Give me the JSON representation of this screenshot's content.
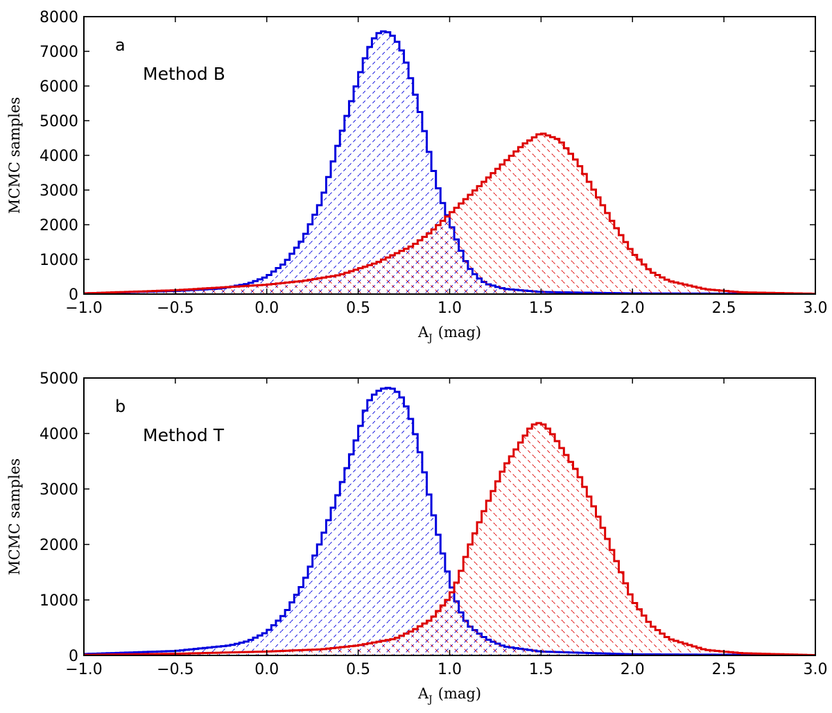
{
  "chart_data": [
    {
      "type": "histogram",
      "panel_label": "a",
      "annotation": "Method B",
      "xlabel": "A",
      "xlabel_sub": "J",
      "xlabel_unit": "(mag)",
      "ylabel": "MCMC samples",
      "xlim": [
        -1.0,
        3.0
      ],
      "ylim": [
        0,
        8000
      ],
      "xticks": [
        -1.0,
        -0.5,
        0.0,
        0.5,
        1.0,
        1.5,
        2.0,
        2.5,
        3.0
      ],
      "xtick_labels": [
        "−1.0",
        "−0.5",
        "0.0",
        "0.5",
        "1.0",
        "1.5",
        "2.0",
        "2.5",
        "3.0"
      ],
      "yticks": [
        0,
        1000,
        2000,
        3000,
        4000,
        5000,
        6000,
        7000,
        8000
      ],
      "ytick_labels": [
        "0",
        "1000",
        "2000",
        "3000",
        "4000",
        "5000",
        "6000",
        "7000",
        "8000"
      ],
      "bin_width": 0.025,
      "series": [
        {
          "name": "blue",
          "color": "#0000dd",
          "hatch": "forward",
          "points": [
            [
              -1.0,
              20
            ],
            [
              -0.5,
              90
            ],
            [
              -0.25,
              160
            ],
            [
              -0.1,
              300
            ],
            [
              0.0,
              500
            ],
            [
              0.1,
              900
            ],
            [
              0.2,
              1600
            ],
            [
              0.3,
              2700
            ],
            [
              0.4,
              4500
            ],
            [
              0.5,
              6200
            ],
            [
              0.55,
              7000
            ],
            [
              0.6,
              7500
            ],
            [
              0.65,
              7600
            ],
            [
              0.7,
              7400
            ],
            [
              0.75,
              6900
            ],
            [
              0.8,
              6000
            ],
            [
              0.85,
              5000
            ],
            [
              0.9,
              3800
            ],
            [
              0.95,
              2800
            ],
            [
              1.0,
              2100
            ],
            [
              1.05,
              1400
            ],
            [
              1.1,
              800
            ],
            [
              1.15,
              500
            ],
            [
              1.2,
              300
            ],
            [
              1.3,
              150
            ],
            [
              1.5,
              60
            ],
            [
              2.0,
              20
            ],
            [
              3.0,
              5
            ]
          ]
        },
        {
          "name": "red",
          "color": "#dd0000",
          "hatch": "back",
          "points": [
            [
              -1.0,
              20
            ],
            [
              -0.5,
              110
            ],
            [
              0.0,
              270
            ],
            [
              0.2,
              380
            ],
            [
              0.4,
              550
            ],
            [
              0.6,
              900
            ],
            [
              0.8,
              1400
            ],
            [
              0.9,
              1800
            ],
            [
              1.0,
              2300
            ],
            [
              1.1,
              2800
            ],
            [
              1.2,
              3300
            ],
            [
              1.3,
              3800
            ],
            [
              1.4,
              4300
            ],
            [
              1.5,
              4650
            ],
            [
              1.6,
              4450
            ],
            [
              1.7,
              3800
            ],
            [
              1.8,
              2900
            ],
            [
              1.9,
              2000
            ],
            [
              2.0,
              1200
            ],
            [
              2.1,
              650
            ],
            [
              2.2,
              380
            ],
            [
              2.4,
              140
            ],
            [
              2.6,
              50
            ],
            [
              3.0,
              10
            ]
          ]
        }
      ]
    },
    {
      "type": "histogram",
      "panel_label": "b",
      "annotation": "Method T",
      "xlabel": "A",
      "xlabel_sub": "J",
      "xlabel_unit": "(mag)",
      "ylabel": "MCMC samples",
      "xlim": [
        -1.0,
        3.0
      ],
      "ylim": [
        0,
        5000
      ],
      "xticks": [
        -1.0,
        -0.5,
        0.0,
        0.5,
        1.0,
        1.5,
        2.0,
        2.5,
        3.0
      ],
      "xtick_labels": [
        "−1.0",
        "−0.5",
        "0.0",
        "0.5",
        "1.0",
        "1.5",
        "2.0",
        "2.5",
        "3.0"
      ],
      "yticks": [
        0,
        1000,
        2000,
        3000,
        4000,
        5000
      ],
      "ytick_labels": [
        "0",
        "1000",
        "2000",
        "3000",
        "4000",
        "5000"
      ],
      "bin_width": 0.025,
      "series": [
        {
          "name": "blue",
          "color": "#0000dd",
          "hatch": "forward",
          "points": [
            [
              -1.0,
              25
            ],
            [
              -0.5,
              80
            ],
            [
              -0.2,
              180
            ],
            [
              -0.1,
              260
            ],
            [
              0.0,
              420
            ],
            [
              0.1,
              750
            ],
            [
              0.2,
              1300
            ],
            [
              0.3,
              2100
            ],
            [
              0.4,
              3000
            ],
            [
              0.5,
              4000
            ],
            [
              0.55,
              4550
            ],
            [
              0.6,
              4750
            ],
            [
              0.65,
              4830
            ],
            [
              0.7,
              4800
            ],
            [
              0.75,
              4600
            ],
            [
              0.8,
              4150
            ],
            [
              0.85,
              3500
            ],
            [
              0.9,
              2700
            ],
            [
              0.95,
              2000
            ],
            [
              1.0,
              1350
            ],
            [
              1.05,
              850
            ],
            [
              1.1,
              550
            ],
            [
              1.2,
              300
            ],
            [
              1.3,
              160
            ],
            [
              1.5,
              70
            ],
            [
              2.0,
              20
            ],
            [
              3.0,
              5
            ]
          ]
        },
        {
          "name": "red",
          "color": "#dd0000",
          "hatch": "back",
          "points": [
            [
              -1.0,
              10
            ],
            [
              -0.5,
              30
            ],
            [
              0.0,
              70
            ],
            [
              0.3,
              110
            ],
            [
              0.5,
              180
            ],
            [
              0.7,
              300
            ],
            [
              0.8,
              450
            ],
            [
              0.9,
              650
            ],
            [
              1.0,
              1050
            ],
            [
              1.05,
              1400
            ],
            [
              1.1,
              1900
            ],
            [
              1.2,
              2700
            ],
            [
              1.3,
              3400
            ],
            [
              1.4,
              3900
            ],
            [
              1.45,
              4150
            ],
            [
              1.5,
              4200
            ],
            [
              1.55,
              4050
            ],
            [
              1.6,
              3800
            ],
            [
              1.7,
              3300
            ],
            [
              1.8,
              2600
            ],
            [
              1.9,
              1800
            ],
            [
              2.0,
              1000
            ],
            [
              2.1,
              550
            ],
            [
              2.2,
              300
            ],
            [
              2.4,
              100
            ],
            [
              2.6,
              40
            ],
            [
              3.0,
              5
            ]
          ]
        }
      ]
    }
  ]
}
